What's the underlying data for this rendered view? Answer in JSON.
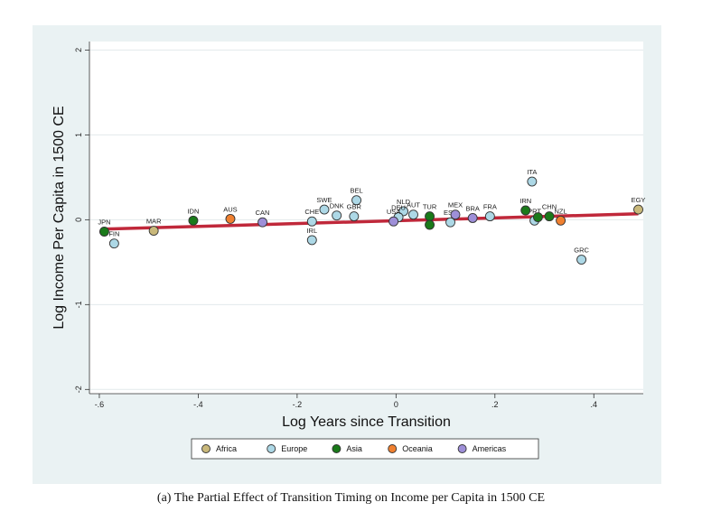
{
  "chart_data": {
    "type": "scatter",
    "xlabel": "Log Years since Transition",
    "ylabel": "Log Income Per Capita in 1500 CE",
    "xlim": [
      -0.62,
      0.5
    ],
    "ylim": [
      -2.05,
      2.1
    ],
    "x_ticks": [
      -0.6,
      -0.4,
      -0.2,
      0,
      0.2,
      0.4
    ],
    "x_tick_labels": [
      "-.6",
      "-.4",
      "-.2",
      "0",
      ".2",
      ".4"
    ],
    "y_ticks": [
      -2,
      -1,
      0,
      1,
      2
    ],
    "y_tick_labels": [
      "-2",
      "-1",
      "0",
      "1",
      "2"
    ],
    "grid": "horizontal",
    "colors": {
      "Africa": "#c9b87a",
      "Europe": "#add8e6",
      "Asia": "#1a7a1a",
      "Oceania": "#f08030",
      "Americas": "#9e8fd8",
      "fit_line": "#c0283a",
      "background": "#eaf2f3"
    },
    "series": [
      {
        "name": "Africa",
        "points": [
          {
            "label": "MAR",
            "x": -0.49,
            "y": -0.13
          },
          {
            "label": "EGY",
            "x": 0.49,
            "y": 0.12
          }
        ]
      },
      {
        "name": "Europe",
        "points": [
          {
            "label": "FIN",
            "x": -0.57,
            "y": -0.28
          },
          {
            "label": "CHE",
            "x": -0.17,
            "y": -0.02
          },
          {
            "label": "IRL",
            "x": -0.17,
            "y": -0.24
          },
          {
            "label": "SWE",
            "x": -0.145,
            "y": 0.12
          },
          {
            "label": "DNK",
            "x": -0.12,
            "y": 0.05
          },
          {
            "label": "GBR",
            "x": -0.085,
            "y": 0.04
          },
          {
            "label": "BEL",
            "x": -0.08,
            "y": 0.23
          },
          {
            "label": "NLD",
            "x": 0.015,
            "y": 0.1
          },
          {
            "label": "AUT",
            "x": 0.035,
            "y": 0.06
          },
          {
            "label": "ESP",
            "x": 0.11,
            "y": -0.03
          },
          {
            "label": "ITA",
            "x": 0.275,
            "y": 0.45
          },
          {
            "label": "PRT",
            "x": 0.28,
            "y": -0.01
          },
          {
            "label": "GRC",
            "x": 0.375,
            "y": -0.47
          },
          {
            "label": "FRA",
            "x": 0.19,
            "y": 0.04
          },
          {
            "label": "DEU",
            "x": 0.005,
            "y": 0.03
          }
        ]
      },
      {
        "name": "Asia",
        "points": [
          {
            "label": "JPN",
            "x": -0.59,
            "y": -0.14
          },
          {
            "label": "IDN",
            "x": -0.41,
            "y": -0.01
          },
          {
            "label": "TUR",
            "x": 0.068,
            "y": 0.04
          },
          {
            "label": "",
            "x": 0.068,
            "y": -0.06
          },
          {
            "label": "IRN",
            "x": 0.262,
            "y": 0.11
          },
          {
            "label": "CHN",
            "x": 0.31,
            "y": 0.04
          },
          {
            "label": "",
            "x": 0.287,
            "y": 0.03
          }
        ]
      },
      {
        "name": "Oceania",
        "points": [
          {
            "label": "AUS",
            "x": -0.335,
            "y": 0.01
          },
          {
            "label": "NZL",
            "x": 0.333,
            "y": -0.01
          }
        ]
      },
      {
        "name": "Americas",
        "points": [
          {
            "label": "CAN",
            "x": -0.27,
            "y": -0.03
          },
          {
            "label": "USA",
            "x": -0.005,
            "y": -0.02
          },
          {
            "label": "MEX",
            "x": 0.12,
            "y": 0.06
          },
          {
            "label": "BRA",
            "x": 0.155,
            "y": 0.02
          }
        ]
      }
    ],
    "fit_line": {
      "x": [
        -0.59,
        0.49
      ],
      "y": [
        -0.11,
        0.07
      ]
    },
    "legend": {
      "placement": "bottom",
      "entries": [
        "Africa",
        "Europe",
        "Asia",
        "Oceania",
        "Americas"
      ]
    }
  },
  "caption": "(a) The Partial Effect of Transition Timing on Income per Capita in 1500 CE"
}
